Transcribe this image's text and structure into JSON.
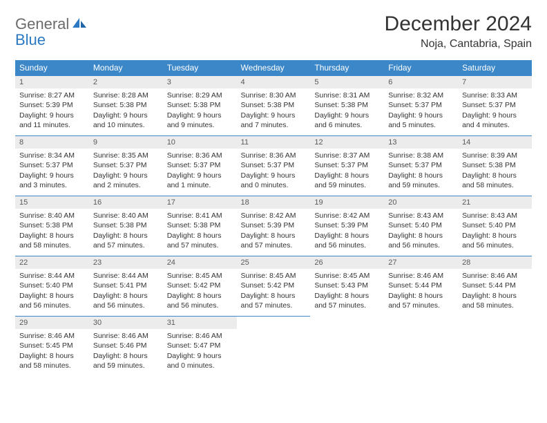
{
  "logo": {
    "general": "General",
    "blue": "Blue"
  },
  "header": {
    "month_title": "December 2024",
    "location": "Noja, Cantabria, Spain"
  },
  "colors": {
    "header_bg": "#3b87c8",
    "header_text": "#ffffff",
    "daynum_bg": "#ececec",
    "daynum_text": "#5a5a5a",
    "cell_border": "#3b87c8",
    "body_text": "#333333",
    "logo_general": "#6b6b6b",
    "logo_blue": "#2a79c2",
    "background": "#ffffff"
  },
  "typography": {
    "title_fontsize": 30,
    "location_fontsize": 16,
    "dayheader_fontsize": 12,
    "daynum_fontsize": 11,
    "body_fontsize": 10.5,
    "font_family": "Arial"
  },
  "calendar": {
    "day_names": [
      "Sunday",
      "Monday",
      "Tuesday",
      "Wednesday",
      "Thursday",
      "Friday",
      "Saturday"
    ],
    "weeks": [
      [
        {
          "num": "1",
          "sunrise": "Sunrise: 8:27 AM",
          "sunset": "Sunset: 5:39 PM",
          "daylight": "Daylight: 9 hours and 11 minutes."
        },
        {
          "num": "2",
          "sunrise": "Sunrise: 8:28 AM",
          "sunset": "Sunset: 5:38 PM",
          "daylight": "Daylight: 9 hours and 10 minutes."
        },
        {
          "num": "3",
          "sunrise": "Sunrise: 8:29 AM",
          "sunset": "Sunset: 5:38 PM",
          "daylight": "Daylight: 9 hours and 9 minutes."
        },
        {
          "num": "4",
          "sunrise": "Sunrise: 8:30 AM",
          "sunset": "Sunset: 5:38 PM",
          "daylight": "Daylight: 9 hours and 7 minutes."
        },
        {
          "num": "5",
          "sunrise": "Sunrise: 8:31 AM",
          "sunset": "Sunset: 5:38 PM",
          "daylight": "Daylight: 9 hours and 6 minutes."
        },
        {
          "num": "6",
          "sunrise": "Sunrise: 8:32 AM",
          "sunset": "Sunset: 5:37 PM",
          "daylight": "Daylight: 9 hours and 5 minutes."
        },
        {
          "num": "7",
          "sunrise": "Sunrise: 8:33 AM",
          "sunset": "Sunset: 5:37 PM",
          "daylight": "Daylight: 9 hours and 4 minutes."
        }
      ],
      [
        {
          "num": "8",
          "sunrise": "Sunrise: 8:34 AM",
          "sunset": "Sunset: 5:37 PM",
          "daylight": "Daylight: 9 hours and 3 minutes."
        },
        {
          "num": "9",
          "sunrise": "Sunrise: 8:35 AM",
          "sunset": "Sunset: 5:37 PM",
          "daylight": "Daylight: 9 hours and 2 minutes."
        },
        {
          "num": "10",
          "sunrise": "Sunrise: 8:36 AM",
          "sunset": "Sunset: 5:37 PM",
          "daylight": "Daylight: 9 hours and 1 minute."
        },
        {
          "num": "11",
          "sunrise": "Sunrise: 8:36 AM",
          "sunset": "Sunset: 5:37 PM",
          "daylight": "Daylight: 9 hours and 0 minutes."
        },
        {
          "num": "12",
          "sunrise": "Sunrise: 8:37 AM",
          "sunset": "Sunset: 5:37 PM",
          "daylight": "Daylight: 8 hours and 59 minutes."
        },
        {
          "num": "13",
          "sunrise": "Sunrise: 8:38 AM",
          "sunset": "Sunset: 5:37 PM",
          "daylight": "Daylight: 8 hours and 59 minutes."
        },
        {
          "num": "14",
          "sunrise": "Sunrise: 8:39 AM",
          "sunset": "Sunset: 5:38 PM",
          "daylight": "Daylight: 8 hours and 58 minutes."
        }
      ],
      [
        {
          "num": "15",
          "sunrise": "Sunrise: 8:40 AM",
          "sunset": "Sunset: 5:38 PM",
          "daylight": "Daylight: 8 hours and 58 minutes."
        },
        {
          "num": "16",
          "sunrise": "Sunrise: 8:40 AM",
          "sunset": "Sunset: 5:38 PM",
          "daylight": "Daylight: 8 hours and 57 minutes."
        },
        {
          "num": "17",
          "sunrise": "Sunrise: 8:41 AM",
          "sunset": "Sunset: 5:38 PM",
          "daylight": "Daylight: 8 hours and 57 minutes."
        },
        {
          "num": "18",
          "sunrise": "Sunrise: 8:42 AM",
          "sunset": "Sunset: 5:39 PM",
          "daylight": "Daylight: 8 hours and 57 minutes."
        },
        {
          "num": "19",
          "sunrise": "Sunrise: 8:42 AM",
          "sunset": "Sunset: 5:39 PM",
          "daylight": "Daylight: 8 hours and 56 minutes."
        },
        {
          "num": "20",
          "sunrise": "Sunrise: 8:43 AM",
          "sunset": "Sunset: 5:40 PM",
          "daylight": "Daylight: 8 hours and 56 minutes."
        },
        {
          "num": "21",
          "sunrise": "Sunrise: 8:43 AM",
          "sunset": "Sunset: 5:40 PM",
          "daylight": "Daylight: 8 hours and 56 minutes."
        }
      ],
      [
        {
          "num": "22",
          "sunrise": "Sunrise: 8:44 AM",
          "sunset": "Sunset: 5:40 PM",
          "daylight": "Daylight: 8 hours and 56 minutes."
        },
        {
          "num": "23",
          "sunrise": "Sunrise: 8:44 AM",
          "sunset": "Sunset: 5:41 PM",
          "daylight": "Daylight: 8 hours and 56 minutes."
        },
        {
          "num": "24",
          "sunrise": "Sunrise: 8:45 AM",
          "sunset": "Sunset: 5:42 PM",
          "daylight": "Daylight: 8 hours and 56 minutes."
        },
        {
          "num": "25",
          "sunrise": "Sunrise: 8:45 AM",
          "sunset": "Sunset: 5:42 PM",
          "daylight": "Daylight: 8 hours and 57 minutes."
        },
        {
          "num": "26",
          "sunrise": "Sunrise: 8:45 AM",
          "sunset": "Sunset: 5:43 PM",
          "daylight": "Daylight: 8 hours and 57 minutes."
        },
        {
          "num": "27",
          "sunrise": "Sunrise: 8:46 AM",
          "sunset": "Sunset: 5:44 PM",
          "daylight": "Daylight: 8 hours and 57 minutes."
        },
        {
          "num": "28",
          "sunrise": "Sunrise: 8:46 AM",
          "sunset": "Sunset: 5:44 PM",
          "daylight": "Daylight: 8 hours and 58 minutes."
        }
      ],
      [
        {
          "num": "29",
          "sunrise": "Sunrise: 8:46 AM",
          "sunset": "Sunset: 5:45 PM",
          "daylight": "Daylight: 8 hours and 58 minutes."
        },
        {
          "num": "30",
          "sunrise": "Sunrise: 8:46 AM",
          "sunset": "Sunset: 5:46 PM",
          "daylight": "Daylight: 8 hours and 59 minutes."
        },
        {
          "num": "31",
          "sunrise": "Sunrise: 8:46 AM",
          "sunset": "Sunset: 5:47 PM",
          "daylight": "Daylight: 9 hours and 0 minutes."
        },
        null,
        null,
        null,
        null
      ]
    ]
  }
}
